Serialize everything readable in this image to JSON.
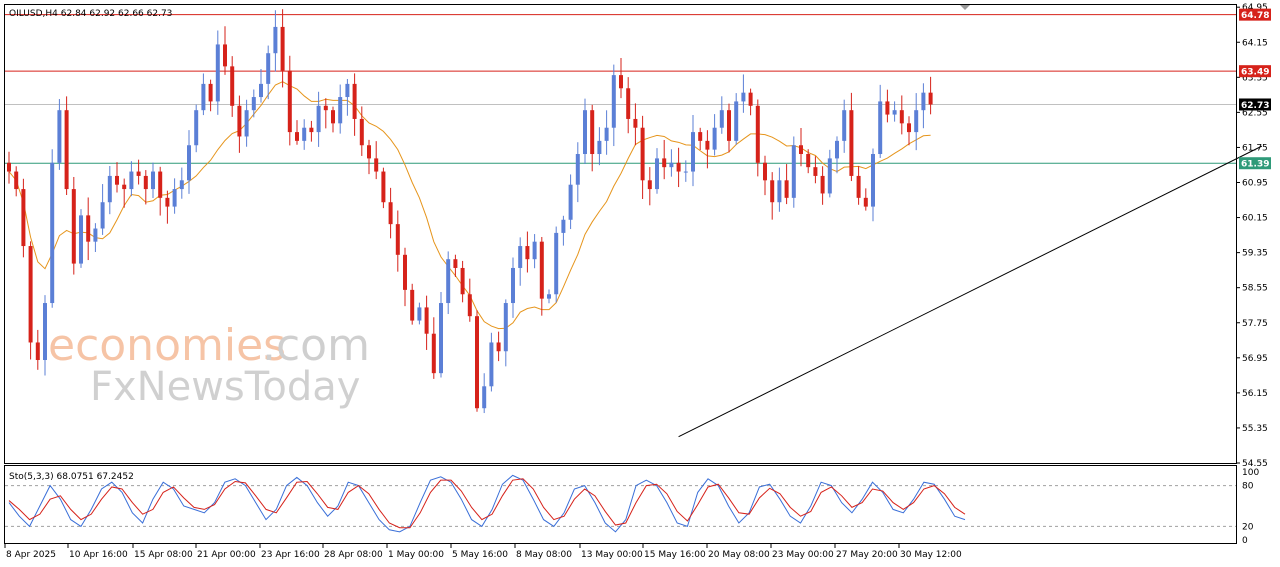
{
  "header": {
    "symbol_line": "OILUSD,H4  62.84 62.92 62.66 62.73",
    "osc_label": "Sto(5,3,3) 68.0751 67.2452"
  },
  "watermark": {
    "line1_a": "economies",
    "line1_b": ".com",
    "line2": "FxNewsToday"
  },
  "colors": {
    "bull": "#5b7fd6",
    "bear": "#d6221a",
    "ma": "#e6951c",
    "resistance": "#d6221a",
    "support_h": "#2f9a79",
    "current_line": "#c0c0c0",
    "trend": "#000000",
    "stoch_k": "#3a6fd8",
    "stoch_d": "#d6221a"
  },
  "chart_data": {
    "type": "candlestick",
    "symbol": "OILUSD",
    "timeframe": "H4",
    "ylim": [
      54.55,
      65.0
    ],
    "y_ticks": [
      "64.95",
      "64.15",
      "63.35",
      "62.55",
      "61.75",
      "60.95",
      "60.15",
      "59.35",
      "58.55",
      "57.75",
      "56.95",
      "56.15",
      "55.35",
      "54.55"
    ],
    "x_ticks": [
      "8 Apr 2025",
      "10 Apr 16:00",
      "15 Apr 08:00",
      "21 Apr 00:00",
      "23 Apr 16:00",
      "28 Apr 08:00",
      "1 May 00:00",
      "5 May 16:00",
      "8 May 08:00",
      "13 May 00:00",
      "15 May 16:00",
      "20 May 08:00",
      "23 May 00:00",
      "27 May 20:00",
      "30 May 12:00"
    ],
    "levels": [
      {
        "label": "64.78",
        "value": 64.78,
        "kind": "resistance"
      },
      {
        "label": "63.49",
        "value": 63.49,
        "kind": "resistance"
      },
      {
        "label": "62.73",
        "value": 62.73,
        "kind": "current"
      },
      {
        "label": "61.39",
        "value": 61.39,
        "kind": "support"
      }
    ],
    "trendline": {
      "from": [
        93,
        55.15
      ],
      "to": [
        174,
        61.78
      ]
    },
    "close": [
      61.2,
      60.8,
      59.5,
      57.3,
      56.9,
      58.2,
      61.4,
      62.6,
      60.8,
      59.1,
      60.2,
      59.6,
      59.9,
      60.5,
      61.1,
      60.9,
      60.8,
      61.2,
      61.1,
      60.8,
      61.2,
      60.6,
      60.4,
      60.8,
      61.0,
      61.8,
      62.6,
      63.2,
      62.8,
      64.1,
      63.6,
      62.7,
      62.0,
      62.6,
      62.9,
      63.2,
      63.9,
      64.5,
      63.5,
      62.1,
      61.9,
      62.2,
      62.1,
      62.7,
      62.6,
      62.3,
      62.9,
      63.2,
      62.4,
      61.8,
      61.5,
      61.2,
      60.5,
      60.0,
      59.3,
      58.5,
      57.8,
      58.1,
      57.5,
      56.6,
      58.2,
      59.2,
      59.0,
      58.4,
      57.9,
      55.8,
      56.3,
      57.3,
      57.1,
      58.2,
      59.0,
      59.5,
      59.2,
      59.6,
      58.3,
      58.4,
      59.8,
      60.1,
      60.9,
      61.6,
      62.6,
      61.6,
      61.9,
      62.2,
      63.4,
      63.1,
      62.4,
      62.2,
      61.0,
      60.8,
      61.5,
      61.3,
      61.4,
      61.2,
      61.2,
      62.1,
      61.9,
      61.7,
      62.2,
      62.6,
      61.9,
      62.8,
      63.0,
      62.7,
      61.4,
      61.0,
      60.5,
      61.0,
      60.6,
      61.8,
      61.6,
      61.3,
      61.1,
      60.7,
      61.5,
      61.9,
      62.6,
      61.1,
      60.6,
      60.4,
      61.6,
      62.8,
      62.5,
      62.6,
      62.3,
      62.1,
      62.6,
      63.0,
      62.73
    ],
    "ma_period_note": "",
    "stoch_k": [
      55,
      35,
      20,
      50,
      80,
      60,
      30,
      20,
      45,
      75,
      85,
      70,
      40,
      25,
      60,
      85,
      75,
      50,
      45,
      40,
      55,
      85,
      90,
      80,
      55,
      30,
      45,
      80,
      92,
      80,
      55,
      35,
      50,
      85,
      80,
      55,
      30,
      15,
      12,
      20,
      55,
      88,
      93,
      85,
      60,
      30,
      20,
      45,
      82,
      95,
      88,
      60,
      30,
      20,
      40,
      75,
      80,
      55,
      25,
      12,
      30,
      80,
      88,
      80,
      55,
      25,
      20,
      70,
      90,
      80,
      50,
      25,
      40,
      78,
      82,
      60,
      35,
      25,
      50,
      85,
      80,
      55,
      40,
      60,
      85,
      70,
      45,
      40,
      60,
      85,
      82,
      60,
      35,
      30
    ],
    "stoch_d": [
      58,
      45,
      30,
      38,
      60,
      65,
      45,
      30,
      38,
      60,
      78,
      75,
      55,
      38,
      45,
      70,
      78,
      62,
      48,
      45,
      52,
      75,
      86,
      84,
      65,
      45,
      40,
      62,
      85,
      86,
      68,
      48,
      45,
      70,
      80,
      68,
      45,
      25,
      18,
      18,
      40,
      70,
      88,
      88,
      72,
      48,
      30,
      38,
      65,
      88,
      90,
      75,
      48,
      30,
      35,
      60,
      75,
      65,
      42,
      22,
      25,
      55,
      80,
      82,
      68,
      42,
      28,
      52,
      78,
      82,
      62,
      40,
      38,
      62,
      76,
      68,
      48,
      35,
      42,
      70,
      78,
      65,
      48,
      55,
      75,
      72,
      55,
      45,
      55,
      75,
      80,
      68,
      48,
      38
    ]
  }
}
